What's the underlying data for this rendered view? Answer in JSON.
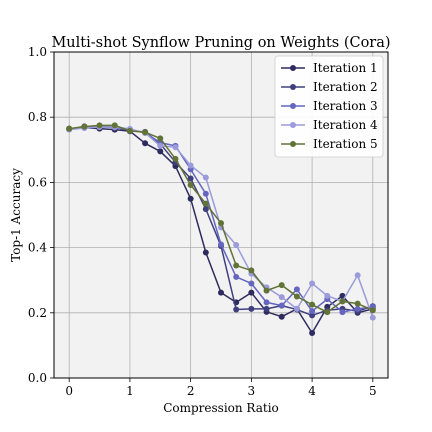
{
  "chart_data": {
    "type": "line",
    "title": "Multi-shot Synflow Pruning on Weights (Cora)",
    "xlabel": "Compression Ratio",
    "ylabel": "Top-1 Accuracy",
    "xlim": [
      -0.25,
      5.25
    ],
    "ylim": [
      0.0,
      1.0
    ],
    "xticks": [
      "0",
      "1",
      "2",
      "3",
      "4",
      "5"
    ],
    "xtick_values": [
      0,
      1,
      2,
      3,
      4,
      5
    ],
    "yticks": [
      "0.0",
      "0.2",
      "0.4",
      "0.6",
      "0.8",
      "1.0"
    ],
    "ytick_values": [
      0.0,
      0.2,
      0.4,
      0.6,
      0.8,
      1.0
    ],
    "grid": true,
    "legend_position": "top-right",
    "x": [
      0,
      0.25,
      0.5,
      0.75,
      1.0,
      1.25,
      1.5,
      1.75,
      2.0,
      2.25,
      2.5,
      2.75,
      3.0,
      3.25,
      3.5,
      3.75,
      4.0,
      4.25,
      4.5,
      4.75,
      5.0
    ],
    "series": [
      {
        "name": "Iteration 1",
        "color": "#2e2c5e",
        "values": [
          0.765,
          0.768,
          0.765,
          0.762,
          0.757,
          0.72,
          0.695,
          0.65,
          0.55,
          0.385,
          0.262,
          0.232,
          0.262,
          0.203,
          0.188,
          0.212,
          0.138,
          0.218,
          0.252,
          0.2,
          0.212
        ]
      },
      {
        "name": "Iteration 2",
        "color": "#41407e",
        "values": [
          0.763,
          0.772,
          0.77,
          0.77,
          0.758,
          0.755,
          0.718,
          0.662,
          0.612,
          0.518,
          0.405,
          0.21,
          0.212,
          0.212,
          0.222,
          0.21,
          0.192,
          0.208,
          0.212,
          0.205,
          0.22
        ]
      },
      {
        "name": "Iteration 3",
        "color": "#6466c0",
        "values": [
          0.764,
          0.77,
          0.772,
          0.768,
          0.762,
          0.752,
          0.722,
          0.712,
          0.64,
          0.565,
          0.41,
          0.31,
          0.29,
          0.232,
          0.222,
          0.272,
          0.205,
          0.242,
          0.202,
          0.212,
          0.218
        ]
      },
      {
        "name": "Iteration 4",
        "color": "#9b9bdb",
        "values": [
          0.762,
          0.767,
          0.77,
          0.77,
          0.764,
          0.752,
          0.712,
          0.708,
          0.652,
          0.615,
          0.462,
          0.408,
          0.32,
          0.278,
          0.248,
          0.212,
          0.29,
          0.252,
          0.235,
          0.315,
          0.185
        ]
      },
      {
        "name": "Iteration 5",
        "color": "#627337",
        "values": [
          0.765,
          0.771,
          0.775,
          0.775,
          0.758,
          0.754,
          0.735,
          0.672,
          0.592,
          0.535,
          0.475,
          0.345,
          0.33,
          0.268,
          0.285,
          0.25,
          0.225,
          0.202,
          0.235,
          0.228,
          0.208
        ]
      }
    ]
  }
}
